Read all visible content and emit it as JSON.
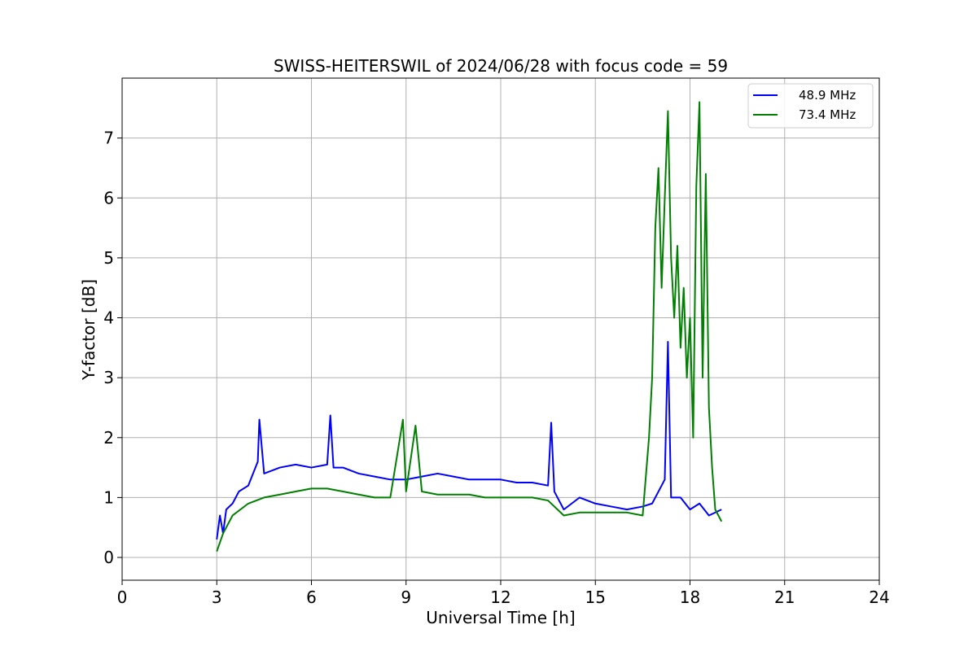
{
  "chart_data": {
    "type": "line",
    "title": "SWISS-HEITERSWIL of 2024/06/28 with focus code = 59",
    "xlabel": "Universal Time [h]",
    "ylabel": "Y-factor [dB]",
    "xlim": [
      0,
      24
    ],
    "ylim": [
      -0.38,
      8.0
    ],
    "xticks": [
      0,
      3,
      6,
      9,
      12,
      15,
      18,
      21,
      24
    ],
    "yticks": [
      0,
      1,
      2,
      3,
      4,
      5,
      6,
      7
    ],
    "grid": true,
    "legend_position": "top-right",
    "series": [
      {
        "name": "48.9 MHz",
        "color": "#0000ff",
        "points": [
          [
            3.0,
            0.3
          ],
          [
            3.1,
            0.7
          ],
          [
            3.2,
            0.4
          ],
          [
            3.3,
            0.8
          ],
          [
            3.5,
            0.9
          ],
          [
            3.7,
            1.1
          ],
          [
            4.0,
            1.2
          ],
          [
            4.3,
            1.6
          ],
          [
            4.35,
            2.3
          ],
          [
            4.5,
            1.4
          ],
          [
            5.0,
            1.5
          ],
          [
            5.5,
            1.55
          ],
          [
            6.0,
            1.5
          ],
          [
            6.5,
            1.55
          ],
          [
            6.6,
            2.37
          ],
          [
            6.7,
            1.5
          ],
          [
            7.0,
            1.5
          ],
          [
            7.5,
            1.4
          ],
          [
            8.0,
            1.35
          ],
          [
            8.5,
            1.3
          ],
          [
            9.0,
            1.3
          ],
          [
            9.5,
            1.35
          ],
          [
            10.0,
            1.4
          ],
          [
            10.5,
            1.35
          ],
          [
            11.0,
            1.3
          ],
          [
            11.5,
            1.3
          ],
          [
            12.0,
            1.3
          ],
          [
            12.5,
            1.25
          ],
          [
            13.0,
            1.25
          ],
          [
            13.5,
            1.2
          ],
          [
            13.6,
            2.25
          ],
          [
            13.7,
            1.1
          ],
          [
            14.0,
            0.8
          ],
          [
            14.5,
            1.0
          ],
          [
            15.0,
            0.9
          ],
          [
            15.5,
            0.85
          ],
          [
            16.0,
            0.8
          ],
          [
            16.5,
            0.85
          ],
          [
            16.8,
            0.9
          ],
          [
            17.0,
            1.1
          ],
          [
            17.2,
            1.3
          ],
          [
            17.3,
            3.6
          ],
          [
            17.4,
            1.0
          ],
          [
            17.7,
            1.0
          ],
          [
            18.0,
            0.8
          ],
          [
            18.3,
            0.9
          ],
          [
            18.6,
            0.7
          ],
          [
            19.0,
            0.8
          ]
        ]
      },
      {
        "name": "73.4 MHz",
        "color": "#008000",
        "points": [
          [
            3.0,
            0.1
          ],
          [
            3.2,
            0.4
          ],
          [
            3.5,
            0.7
          ],
          [
            4.0,
            0.9
          ],
          [
            4.5,
            1.0
          ],
          [
            5.0,
            1.05
          ],
          [
            5.5,
            1.1
          ],
          [
            6.0,
            1.15
          ],
          [
            6.5,
            1.15
          ],
          [
            7.0,
            1.1
          ],
          [
            7.5,
            1.05
          ],
          [
            8.0,
            1.0
          ],
          [
            8.5,
            1.0
          ],
          [
            8.9,
            2.3
          ],
          [
            9.0,
            1.1
          ],
          [
            9.3,
            2.2
          ],
          [
            9.5,
            1.1
          ],
          [
            10.0,
            1.05
          ],
          [
            10.5,
            1.05
          ],
          [
            11.0,
            1.05
          ],
          [
            11.5,
            1.0
          ],
          [
            12.0,
            1.0
          ],
          [
            12.5,
            1.0
          ],
          [
            13.0,
            1.0
          ],
          [
            13.5,
            0.95
          ],
          [
            14.0,
            0.7
          ],
          [
            14.5,
            0.75
          ],
          [
            15.0,
            0.75
          ],
          [
            15.5,
            0.75
          ],
          [
            16.0,
            0.75
          ],
          [
            16.5,
            0.7
          ],
          [
            16.7,
            2.0
          ],
          [
            16.8,
            3.0
          ],
          [
            16.9,
            5.5
          ],
          [
            17.0,
            6.5
          ],
          [
            17.1,
            4.5
          ],
          [
            17.2,
            6.0
          ],
          [
            17.3,
            7.45
          ],
          [
            17.4,
            5.0
          ],
          [
            17.5,
            4.0
          ],
          [
            17.6,
            5.2
          ],
          [
            17.7,
            3.5
          ],
          [
            17.8,
            4.5
          ],
          [
            17.9,
            3.0
          ],
          [
            18.0,
            4.0
          ],
          [
            18.1,
            2.0
          ],
          [
            18.2,
            6.2
          ],
          [
            18.3,
            7.6
          ],
          [
            18.4,
            3.0
          ],
          [
            18.5,
            6.4
          ],
          [
            18.6,
            2.5
          ],
          [
            18.7,
            1.5
          ],
          [
            18.8,
            0.8
          ],
          [
            19.0,
            0.6
          ]
        ]
      }
    ]
  }
}
